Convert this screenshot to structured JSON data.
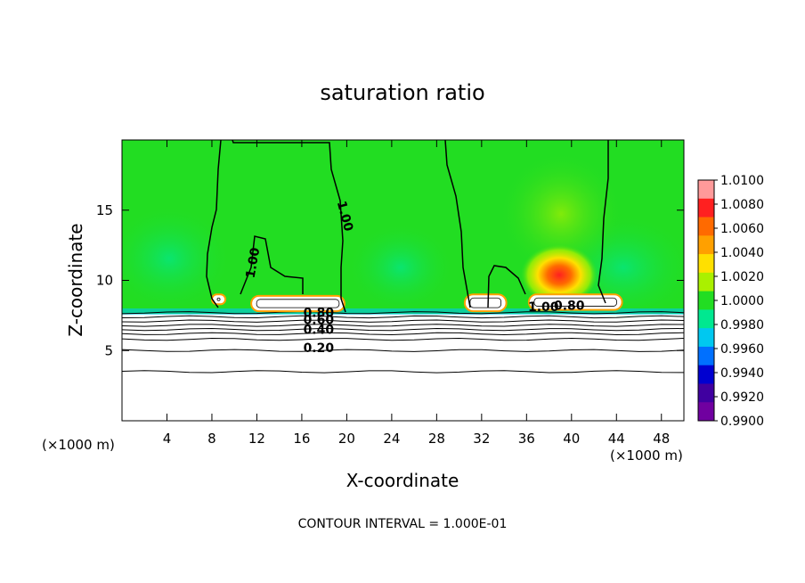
{
  "chart_data": {
    "type": "heatmap",
    "title": "saturation ratio",
    "xlabel": "X-coordinate",
    "ylabel": "Z-coordinate",
    "x_unit_left": "(×1000 m)",
    "x_unit_right": "(×1000 m)",
    "xlim": [
      0,
      50
    ],
    "ylim": [
      0,
      20
    ],
    "x_ticks": [
      4,
      8,
      12,
      16,
      20,
      24,
      28,
      32,
      36,
      40,
      44,
      48
    ],
    "y_ticks": [
      5,
      10,
      15
    ],
    "colorbar": {
      "min": 0.99,
      "max": 1.01,
      "labels": [
        "1.0100",
        "1.0080",
        "1.0060",
        "1.0040",
        "1.0020",
        "1.0000",
        "0.9980",
        "0.9960",
        "0.9940",
        "0.9920",
        "0.9900"
      ],
      "colors": [
        "#ff9a9a",
        "#ff2020",
        "#ff6a00",
        "#ffa000",
        "#ffe000",
        "#aaf000",
        "#22dd22",
        "#00e890",
        "#00c8f0",
        "#0070ff",
        "#0000d0",
        "#4000a0",
        "#7000a0"
      ]
    },
    "background_value": 0.999,
    "field_features": [
      {
        "kind": "moist-blob",
        "x": 39,
        "z": 11,
        "peak": 1.008
      },
      {
        "kind": "moist-blob",
        "x": 40,
        "z": 15,
        "peak": 1.002
      },
      {
        "kind": "dry-layer",
        "z": 7.5,
        "value": 0.996
      }
    ],
    "contour_labels": [
      {
        "text": "1.00",
        "x": 19.5,
        "z": 14.5,
        "rotate": 75
      },
      {
        "text": "1.00",
        "x": 12,
        "z": 11.2,
        "rotate": -80
      },
      {
        "text": "0.80",
        "x": 17.5,
        "z": 7.4,
        "rotate": 0
      },
      {
        "text": "0.60",
        "x": 17.5,
        "z": 6.9,
        "rotate": 0
      },
      {
        "text": "0.40",
        "x": 17.5,
        "z": 6.2,
        "rotate": 0
      },
      {
        "text": "0.20",
        "x": 17.5,
        "z": 4.9,
        "rotate": 0
      },
      {
        "text": "1.00",
        "x": 37.5,
        "z": 7.8,
        "rotate": 0
      },
      {
        "text": "0.80",
        "x": 39.8,
        "z": 7.9,
        "rotate": 0
      }
    ],
    "horizontal_contours_z": [
      7.7,
      7.4,
      7.1,
      6.8,
      6.5,
      6.2,
      5.8,
      5.0,
      3.5
    ],
    "clouds": [
      {
        "x": [
          11.5,
          19.8
        ],
        "z": [
          7.8,
          8.9
        ]
      },
      {
        "x": [
          30.5,
          34.2
        ],
        "z": [
          7.8,
          9.0
        ]
      },
      {
        "x": [
          36.2,
          44.5
        ],
        "z": [
          7.9,
          9.0
        ]
      },
      {
        "x": [
          8.0,
          9.2
        ],
        "z": [
          8.3,
          9.0
        ]
      }
    ],
    "note": "CONTOUR INTERVAL = 1.000E-01"
  }
}
